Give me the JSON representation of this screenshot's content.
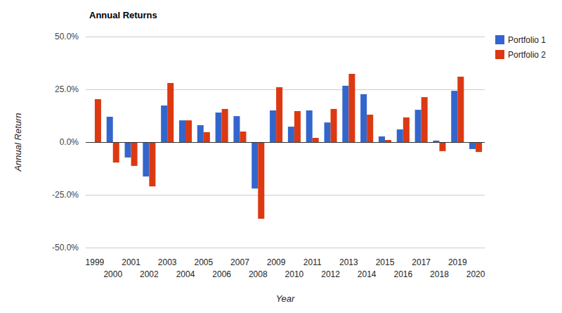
{
  "chart_data": {
    "type": "bar",
    "title": "Annual Returns",
    "xlabel": "Year",
    "ylabel": "Annual Return",
    "categories": [
      "1999",
      "2000",
      "2001",
      "2002",
      "2003",
      "2004",
      "2005",
      "2006",
      "2007",
      "2008",
      "2009",
      "2010",
      "2011",
      "2012",
      "2013",
      "2014",
      "2015",
      "2016",
      "2017",
      "2018",
      "2019",
      "2020"
    ],
    "series": [
      {
        "name": "Portfolio 1",
        "color": "#3366cc",
        "values": [
          null,
          12.0,
          -7.3,
          -16.3,
          17.3,
          10.3,
          8.0,
          14.0,
          12.3,
          -22.0,
          15.0,
          7.3,
          15.0,
          9.3,
          26.7,
          22.7,
          2.7,
          6.0,
          15.3,
          0.7,
          24.3,
          -3.3
        ]
      },
      {
        "name": "Portfolio 2",
        "color": "#dc3912",
        "values": [
          20.3,
          -9.7,
          -11.3,
          -21.0,
          28.0,
          10.3,
          4.7,
          15.7,
          5.0,
          -36.3,
          26.0,
          14.7,
          2.0,
          15.7,
          32.3,
          13.0,
          1.0,
          11.7,
          21.3,
          -4.3,
          31.0,
          -4.7
        ]
      }
    ],
    "ylim": [
      -50,
      50
    ],
    "yticks": [
      {
        "value": -50,
        "label": "-50.0%"
      },
      {
        "value": -25,
        "label": "-25.0%"
      },
      {
        "value": 0,
        "label": "0.0%"
      },
      {
        "value": 25,
        "label": "25.0%"
      },
      {
        "value": 50,
        "label": "50.0%"
      }
    ],
    "grid": true,
    "legend": "right"
  }
}
